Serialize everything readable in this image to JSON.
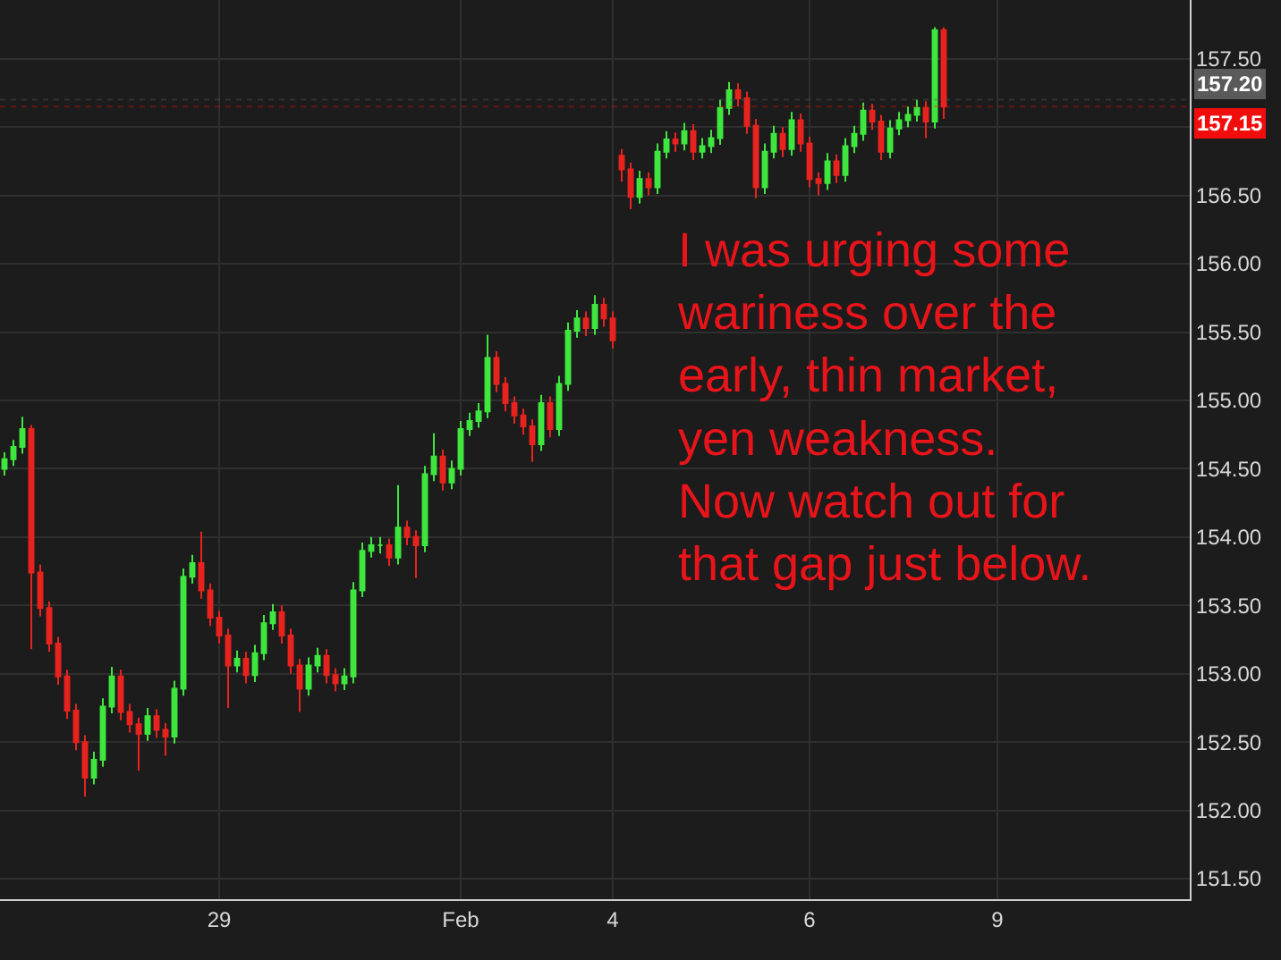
{
  "chart_data": {
    "type": "candlestick",
    "categories": [
      null,
      null,
      null,
      null,
      null,
      null,
      null,
      null,
      null,
      null,
      null,
      null,
      null,
      null,
      null,
      null,
      null,
      null,
      null,
      null,
      null,
      null,
      null,
      null,
      "29",
      null,
      null,
      null,
      null,
      null,
      null,
      null,
      null,
      null,
      null,
      null,
      null,
      null,
      null,
      null,
      null,
      null,
      null,
      null,
      null,
      null,
      null,
      null,
      null,
      null,
      null,
      "Feb",
      null,
      null,
      null,
      null,
      null,
      null,
      null,
      null,
      null,
      null,
      null,
      null,
      null,
      null,
      null,
      null,
      "4",
      null,
      null,
      null,
      null,
      null,
      null,
      null,
      null,
      null,
      null,
      null,
      null,
      null,
      null,
      null,
      null,
      null,
      null,
      null,
      null,
      null,
      "6",
      null,
      null,
      null,
      null,
      null,
      null,
      null,
      null,
      null,
      null,
      null,
      null,
      null,
      null,
      null,
      null,
      null,
      null,
      null,
      null,
      "9",
      null,
      null,
      null,
      null,
      null,
      null,
      null,
      null,
      null,
      null,
      null,
      null,
      null,
      null,
      null,
      null,
      null,
      null,
      null,
      null,
      null
    ],
    "ohlc": [
      [
        154.5,
        154.62,
        154.45,
        154.57
      ],
      [
        154.57,
        154.71,
        154.52,
        154.66
      ],
      [
        154.66,
        154.88,
        154.61,
        154.79
      ],
      [
        154.79,
        154.82,
        153.18,
        153.74
      ],
      [
        153.74,
        153.8,
        153.42,
        153.48
      ],
      [
        153.48,
        153.53,
        153.16,
        153.22
      ],
      [
        153.22,
        153.27,
        152.92,
        152.98
      ],
      [
        152.98,
        153.03,
        152.67,
        152.73
      ],
      [
        152.73,
        152.78,
        152.44,
        152.5
      ],
      [
        152.5,
        152.55,
        152.1,
        152.24
      ],
      [
        152.24,
        152.43,
        152.19,
        152.37
      ],
      [
        152.37,
        152.82,
        152.32,
        152.76
      ],
      [
        152.76,
        153.05,
        152.71,
        152.98
      ],
      [
        152.98,
        153.03,
        152.66,
        152.72
      ],
      [
        152.72,
        152.78,
        152.57,
        152.63
      ],
      [
        152.63,
        152.68,
        152.29,
        152.56
      ],
      [
        152.56,
        152.75,
        152.51,
        152.69
      ],
      [
        152.69,
        152.74,
        152.53,
        152.59
      ],
      [
        152.59,
        152.64,
        152.4,
        152.54
      ],
      [
        152.54,
        152.95,
        152.49,
        152.89
      ],
      [
        152.89,
        153.77,
        152.84,
        153.71
      ],
      [
        153.71,
        153.87,
        153.66,
        153.81
      ],
      [
        153.81,
        154.04,
        153.55,
        153.61
      ],
      [
        153.61,
        153.66,
        153.35,
        153.41
      ],
      [
        153.41,
        153.46,
        153.22,
        153.28
      ],
      [
        153.28,
        153.33,
        152.75,
        153.06
      ],
      [
        153.06,
        153.17,
        153.01,
        153.11
      ],
      [
        153.11,
        153.16,
        152.93,
        152.99
      ],
      [
        152.99,
        153.21,
        152.94,
        153.15
      ],
      [
        153.15,
        153.43,
        153.1,
        153.37
      ],
      [
        153.37,
        153.51,
        153.32,
        153.45
      ],
      [
        153.45,
        153.5,
        153.22,
        153.28
      ],
      [
        153.28,
        153.33,
        153.0,
        153.06
      ],
      [
        153.06,
        153.11,
        152.72,
        152.89
      ],
      [
        152.89,
        153.12,
        152.84,
        153.06
      ],
      [
        153.06,
        153.19,
        153.01,
        153.13
      ],
      [
        153.13,
        153.18,
        152.93,
        152.99
      ],
      [
        152.99,
        153.04,
        152.87,
        152.93
      ],
      [
        152.93,
        153.04,
        152.88,
        152.98
      ],
      [
        152.98,
        153.67,
        152.93,
        153.61
      ],
      [
        153.61,
        153.96,
        153.56,
        153.9
      ],
      [
        153.9,
        154.0,
        153.85,
        153.94
      ],
      [
        153.94,
        154.0,
        153.88,
        153.94
      ],
      [
        153.94,
        153.99,
        153.79,
        153.85
      ],
      [
        153.85,
        154.38,
        153.8,
        154.07
      ],
      [
        154.07,
        154.12,
        153.94,
        154.0
      ],
      [
        154.0,
        154.05,
        153.7,
        153.94
      ],
      [
        153.94,
        154.52,
        153.89,
        154.46
      ],
      [
        154.46,
        154.76,
        154.41,
        154.59
      ],
      [
        154.59,
        154.64,
        154.34,
        154.4
      ],
      [
        154.4,
        154.56,
        154.35,
        154.5
      ],
      [
        154.5,
        154.85,
        154.45,
        154.79
      ],
      [
        154.79,
        154.91,
        154.74,
        154.85
      ],
      [
        154.85,
        154.98,
        154.8,
        154.92
      ],
      [
        154.92,
        155.48,
        154.87,
        155.31
      ],
      [
        155.31,
        155.36,
        155.06,
        155.12
      ],
      [
        155.12,
        155.17,
        154.92,
        154.98
      ],
      [
        154.98,
        155.03,
        154.83,
        154.89
      ],
      [
        154.89,
        154.94,
        154.75,
        154.81
      ],
      [
        154.81,
        154.86,
        154.55,
        154.68
      ],
      [
        154.68,
        155.04,
        154.63,
        154.98
      ],
      [
        154.98,
        155.03,
        154.73,
        154.79
      ],
      [
        154.79,
        155.18,
        154.74,
        155.12
      ],
      [
        155.12,
        155.57,
        155.07,
        155.51
      ],
      [
        155.51,
        155.66,
        155.46,
        155.6
      ],
      [
        155.6,
        155.65,
        155.47,
        155.53
      ],
      [
        155.53,
        155.77,
        155.48,
        155.7
      ],
      [
        155.7,
        155.75,
        155.54,
        155.6
      ],
      [
        155.6,
        155.65,
        155.38,
        155.44
      ],
      [
        156.79,
        156.84,
        156.6,
        156.69
      ],
      [
        156.69,
        156.74,
        156.4,
        156.49
      ],
      [
        156.49,
        156.68,
        156.44,
        156.62
      ],
      [
        156.62,
        156.67,
        156.5,
        156.56
      ],
      [
        156.56,
        156.88,
        156.51,
        156.82
      ],
      [
        156.82,
        156.97,
        156.77,
        156.91
      ],
      [
        156.91,
        156.96,
        156.82,
        156.88
      ],
      [
        156.88,
        157.03,
        156.83,
        156.97
      ],
      [
        156.97,
        157.02,
        156.76,
        156.82
      ],
      [
        156.82,
        156.92,
        156.77,
        156.86
      ],
      [
        156.86,
        156.98,
        156.81,
        156.92
      ],
      [
        156.92,
        157.2,
        156.87,
        157.14
      ],
      [
        157.14,
        157.33,
        157.09,
        157.27
      ],
      [
        157.27,
        157.32,
        157.15,
        157.21
      ],
      [
        157.21,
        157.26,
        156.95,
        157.01
      ],
      [
        157.01,
        157.06,
        156.48,
        156.56
      ],
      [
        156.56,
        156.88,
        156.51,
        156.82
      ],
      [
        156.82,
        157.01,
        156.77,
        156.95
      ],
      [
        156.95,
        157.0,
        156.78,
        156.84
      ],
      [
        156.84,
        157.11,
        156.79,
        157.05
      ],
      [
        157.05,
        157.1,
        156.82,
        156.88
      ],
      [
        156.88,
        156.93,
        156.56,
        156.62
      ],
      [
        156.62,
        156.67,
        156.5,
        156.59
      ],
      [
        156.59,
        156.81,
        156.54,
        156.75
      ],
      [
        156.75,
        156.8,
        156.59,
        156.65
      ],
      [
        156.65,
        156.92,
        156.6,
        156.86
      ],
      [
        156.86,
        157.01,
        156.81,
        156.95
      ],
      [
        156.95,
        157.18,
        156.9,
        157.12
      ],
      [
        157.12,
        157.17,
        156.98,
        157.04
      ],
      [
        157.04,
        157.09,
        156.76,
        156.82
      ],
      [
        156.82,
        157.05,
        156.77,
        156.99
      ],
      [
        156.99,
        157.11,
        156.94,
        157.05
      ],
      [
        157.05,
        157.15,
        157.0,
        157.09
      ],
      [
        157.09,
        157.2,
        157.04,
        157.14
      ],
      [
        157.14,
        157.19,
        156.92,
        157.04
      ],
      [
        157.04,
        157.73,
        156.99,
        157.71
      ],
      [
        157.71,
        157.73,
        157.06,
        157.15
      ],
      null,
      null,
      null,
      null,
      null,
      null,
      null,
      null,
      null,
      null,
      null,
      null,
      null,
      null,
      null,
      null,
      null,
      null,
      null,
      null,
      null,
      null,
      null,
      null,
      null,
      null,
      null
    ],
    "colors": [
      "#3ee63e",
      "#3ee63e",
      "#3ee63e",
      "#e8231e",
      "#e8231e",
      "#e8231e",
      "#e8231e",
      "#e8231e",
      "#e8231e",
      "#e8231e",
      "#3ee63e",
      "#3ee63e",
      "#3ee63e",
      "#e8231e",
      "#e8231e",
      "#e8231e",
      "#3ee63e",
      "#e8231e",
      "#e8231e",
      "#3ee63e",
      "#3ee63e",
      "#3ee63e",
      "#e8231e",
      "#e8231e",
      "#e8231e",
      "#e8231e",
      "#3ee63e",
      "#e8231e",
      "#3ee63e",
      "#3ee63e",
      "#3ee63e",
      "#e8231e",
      "#e8231e",
      "#e8231e",
      "#3ee63e",
      "#3ee63e",
      "#e8231e",
      "#e8231e",
      "#3ee63e",
      "#3ee63e",
      "#3ee63e",
      "#3ee63e",
      "#3ee63e",
      "#e8231e",
      "#3ee63e",
      "#e8231e",
      "#e8231e",
      "#3ee63e",
      "#3ee63e",
      "#e8231e",
      "#3ee63e",
      "#3ee63e",
      "#3ee63e",
      "#3ee63e",
      "#3ee63e",
      "#e8231e",
      "#e8231e",
      "#e8231e",
      "#e8231e",
      "#e8231e",
      "#3ee63e",
      "#e8231e",
      "#3ee63e",
      "#3ee63e",
      "#3ee63e",
      "#e8231e",
      "#3ee63e",
      "#e8231e",
      "#e8231e",
      "#e8231e",
      "#e8231e",
      "#3ee63e",
      "#e8231e",
      "#3ee63e",
      "#3ee63e",
      "#e8231e",
      "#3ee63e",
      "#e8231e",
      "#3ee63e",
      "#3ee63e",
      "#3ee63e",
      "#3ee63e",
      "#e8231e",
      "#e8231e",
      "#e8231e",
      "#3ee63e",
      "#3ee63e",
      "#e8231e",
      "#3ee63e",
      "#e8231e",
      "#e8231e",
      "#e8231e",
      "#3ee63e",
      "#e8231e",
      "#3ee63e",
      "#3ee63e",
      "#3ee63e",
      "#e8231e",
      "#e8231e",
      "#3ee63e",
      "#3ee63e",
      "#3ee63e",
      "#3ee63e",
      "#e8231e",
      "#3ee63e",
      "#e8231e",
      null,
      null,
      null,
      null,
      null,
      null,
      null,
      null,
      null,
      null,
      null,
      null,
      null,
      null,
      null,
      null,
      null,
      null,
      null,
      null,
      null,
      null,
      null,
      null,
      null,
      null,
      null
    ],
    "ylim": [
      151.35,
      157.93
    ],
    "yticks": [
      {
        "value": 151.5,
        "label": "151.50"
      },
      {
        "value": 152,
        "label": "152.00"
      },
      {
        "value": 152.5,
        "label": "152.50"
      },
      {
        "value": 153,
        "label": "153.00"
      },
      {
        "value": 153.5,
        "label": "153.50"
      },
      {
        "value": 154,
        "label": "154.00"
      },
      {
        "value": 154.5,
        "label": "154.50"
      },
      {
        "value": 155,
        "label": "155.00"
      },
      {
        "value": 155.5,
        "label": "155.50"
      },
      {
        "value": 156,
        "label": "156.00"
      },
      {
        "value": 156.5,
        "label": "156.50"
      },
      {
        "value": 157,
        "label": null
      },
      {
        "value": 157.5,
        "label": "157.50"
      }
    ],
    "ref_lines": [
      {
        "axis": "y",
        "value": 157.2,
        "label": "157.20",
        "color": "#5a5a5a"
      },
      {
        "axis": "y",
        "value": 157.15,
        "label": "157.15",
        "color": "#f20d0d"
      }
    ],
    "annotations": [
      "I was urging some\nwariness over the\nearly, thin market,\nyen weakness.\nNow watch out for\nthat gap just below."
    ],
    "grid": true
  }
}
